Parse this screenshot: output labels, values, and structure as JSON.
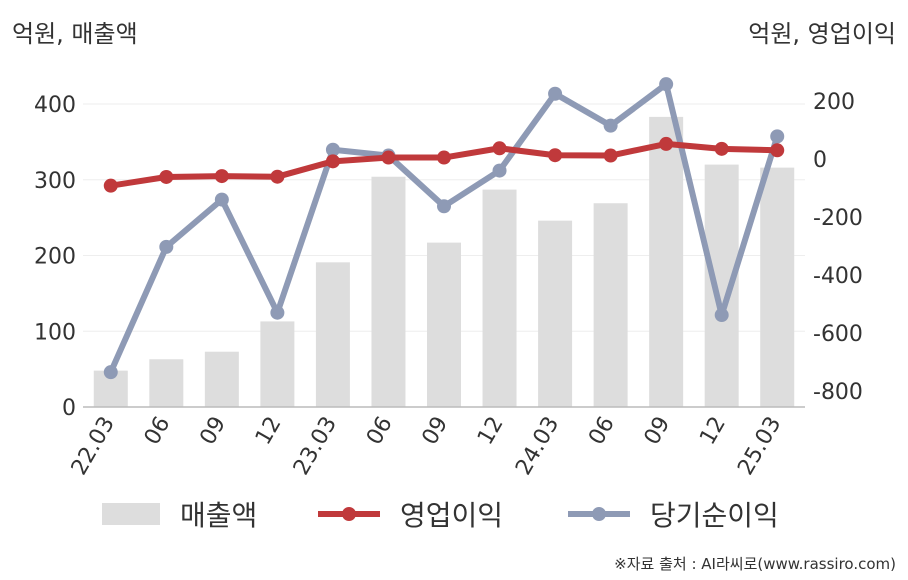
{
  "units": {
    "left": "억원, 매출액",
    "right": "억원, 영업이익"
  },
  "source": "※자료 출처 : AI라씨로(www.rassiro.com)",
  "colors": {
    "bars": "#dddddd",
    "operating_profit": "#c0393b",
    "net_income": "#8e9ab5",
    "axis": "#bbbbbb",
    "grid": "#eeeeee"
  },
  "chart_data": {
    "type": "bar",
    "categories": [
      "22.03",
      "06",
      "09",
      "12",
      "23.03",
      "06",
      "09",
      "12",
      "24.03",
      "06",
      "09",
      "12",
      "25.03"
    ],
    "y_left": {
      "ticks": [
        "0",
        "100",
        "200",
        "300",
        "400"
      ],
      "ylim": [
        0,
        450
      ]
    },
    "y_right": {
      "ticks": [
        "200",
        "0",
        "-200",
        "-400",
        "-600",
        "-800"
      ],
      "ylim": [
        -850,
        300
      ]
    },
    "grid": true,
    "legend_position": "bottom",
    "series": [
      {
        "name": "매출액",
        "type": "bar",
        "axis": "left",
        "values": [
          48,
          63,
          73,
          113,
          191,
          304,
          217,
          287,
          246,
          269,
          383,
          320,
          316
        ]
      },
      {
        "name": "영업이익",
        "type": "line",
        "axis": "right",
        "values": [
          -92,
          -62,
          -59,
          -61,
          -8,
          5,
          5,
          37,
          13,
          12,
          52,
          35,
          30
        ]
      },
      {
        "name": "당기순이익",
        "type": "line",
        "axis": "right",
        "values": [
          -735,
          -303,
          -140,
          -530,
          32,
          12,
          -163,
          -40,
          225,
          115,
          258,
          -538,
          78
        ]
      }
    ]
  }
}
